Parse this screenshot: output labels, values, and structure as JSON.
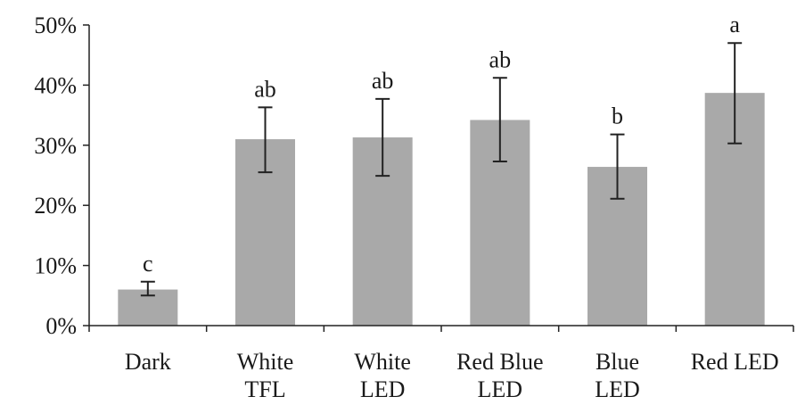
{
  "chart_data": {
    "type": "bar",
    "categories": [
      [
        "Dark"
      ],
      [
        "White",
        "TFL"
      ],
      [
        "White",
        "LED"
      ],
      [
        "Red Blue",
        "LED"
      ],
      [
        "Blue",
        "LED"
      ],
      [
        "Red LED"
      ]
    ],
    "values": [
      6.0,
      31.0,
      31.3,
      34.2,
      26.4,
      38.7
    ],
    "error_high": [
      7.3,
      36.3,
      37.7,
      41.2,
      31.8,
      47.0
    ],
    "error_low": [
      5.0,
      25.5,
      24.9,
      27.3,
      21.1,
      30.3
    ],
    "significance_letters": [
      "c",
      "ab",
      "ab",
      "ab",
      "b",
      "a"
    ],
    "ylim": [
      0,
      50
    ],
    "yticks": [
      "0%",
      "10%",
      "20%",
      "30%",
      "40%",
      "50%"
    ],
    "ytick_values": [
      0,
      10,
      20,
      30,
      40,
      50
    ],
    "title": "",
    "xlabel": "",
    "ylabel": "",
    "grid": false,
    "colors": {
      "bar": "#a9a9a9",
      "axis": "#222222",
      "error_bar": "#222222",
      "text": "#1a1a1a"
    }
  }
}
